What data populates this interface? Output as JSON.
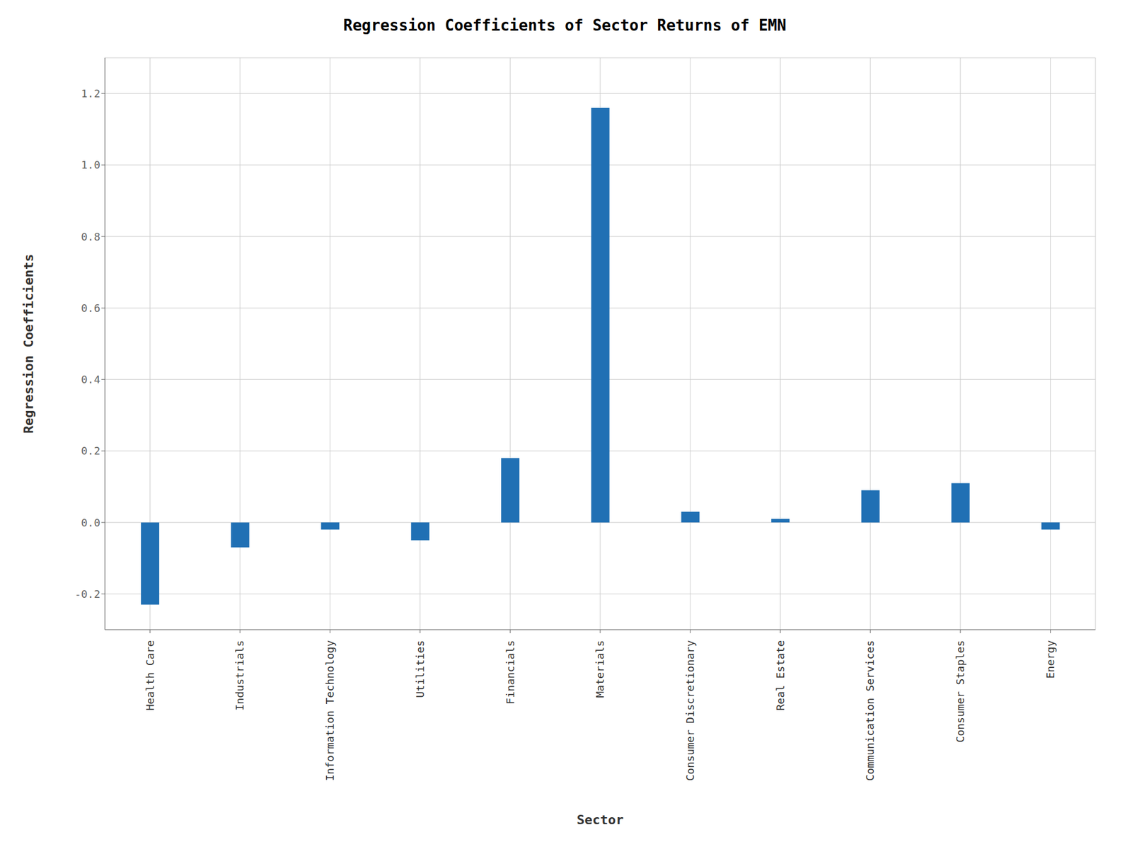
{
  "chart_data": {
    "type": "bar",
    "title": "Regression Coefficients of Sector Returns of EMN",
    "xlabel": "Sector",
    "ylabel": "Regression Coefficients",
    "categories": [
      "Health Care",
      "Industrials",
      "Information Technology",
      "Utilities",
      "Financials",
      "Materials",
      "Consumer Discretionary",
      "Real Estate",
      "Communication Services",
      "Consumer Staples",
      "Energy"
    ],
    "values": [
      -0.23,
      -0.07,
      -0.02,
      -0.05,
      0.18,
      1.16,
      0.03,
      0.01,
      0.09,
      0.11,
      -0.02
    ],
    "color": "#2070b4",
    "ylim": [
      -0.3,
      1.3
    ],
    "yticks": [
      -0.2,
      {
        "value": 0,
        "label": "0.0"
      },
      0.2,
      0.4,
      0.6,
      0.8,
      {
        "value": 1,
        "label": "1.0"
      },
      1.2
    ],
    "grid": true
  }
}
